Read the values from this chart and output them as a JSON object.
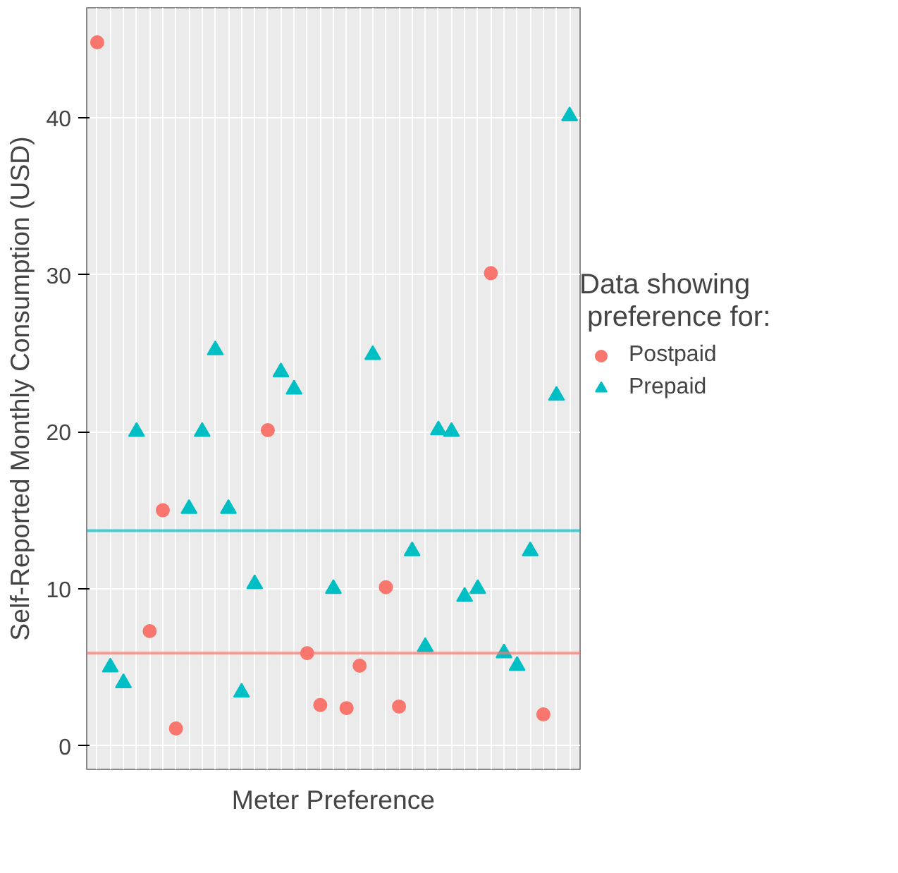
{
  "chart_data": {
    "type": "scatter",
    "xlabel": "Meter Preference",
    "ylabel": "Self-Reported Monthly Consumption (USD)",
    "legend_title": "Data showing\n preference for:",
    "categories": [
      null,
      null,
      null,
      null,
      null,
      null,
      null,
      null,
      null,
      null,
      null,
      null,
      null,
      null,
      null,
      null,
      null,
      null,
      null,
      null,
      null,
      null,
      null,
      null,
      null,
      null,
      null,
      null,
      null,
      null,
      null,
      null,
      null,
      null,
      null,
      null,
      null
    ],
    "series": [
      {
        "name": "Postpaid",
        "color": "#f8766d",
        "marker": "circle",
        "values": [
          44.8,
          null,
          null,
          null,
          7.3,
          15.0,
          1.1,
          null,
          null,
          null,
          null,
          null,
          null,
          20.1,
          null,
          null,
          5.9,
          2.6,
          null,
          2.4,
          5.1,
          null,
          10.1,
          2.5,
          null,
          null,
          null,
          null,
          null,
          null,
          30.1,
          null,
          null,
          null,
          2.0,
          null,
          null
        ]
      },
      {
        "name": "Prepaid",
        "color": "#00bfc4",
        "marker": "triangle",
        "values": [
          null,
          5.0,
          4.0,
          20.0,
          null,
          null,
          null,
          15.1,
          20.0,
          25.2,
          15.1,
          3.4,
          10.3,
          null,
          23.8,
          22.7,
          null,
          null,
          10.0,
          null,
          null,
          24.9,
          null,
          null,
          12.4,
          6.3,
          20.1,
          20.0,
          9.5,
          10.0,
          null,
          5.9,
          5.1,
          12.4,
          null,
          22.3,
          40.1
        ]
      }
    ],
    "ref_lines": [
      {
        "axis": "y",
        "value": 5.9,
        "color": "#f8766d"
      },
      {
        "axis": "y",
        "value": 13.7,
        "color": "#00bfc4"
      }
    ],
    "ylim": [
      -1.5,
      47
    ],
    "yticks": [
      0,
      10,
      20,
      30,
      40
    ],
    "grid": true,
    "legend": "right",
    "tick_labels": "y"
  }
}
